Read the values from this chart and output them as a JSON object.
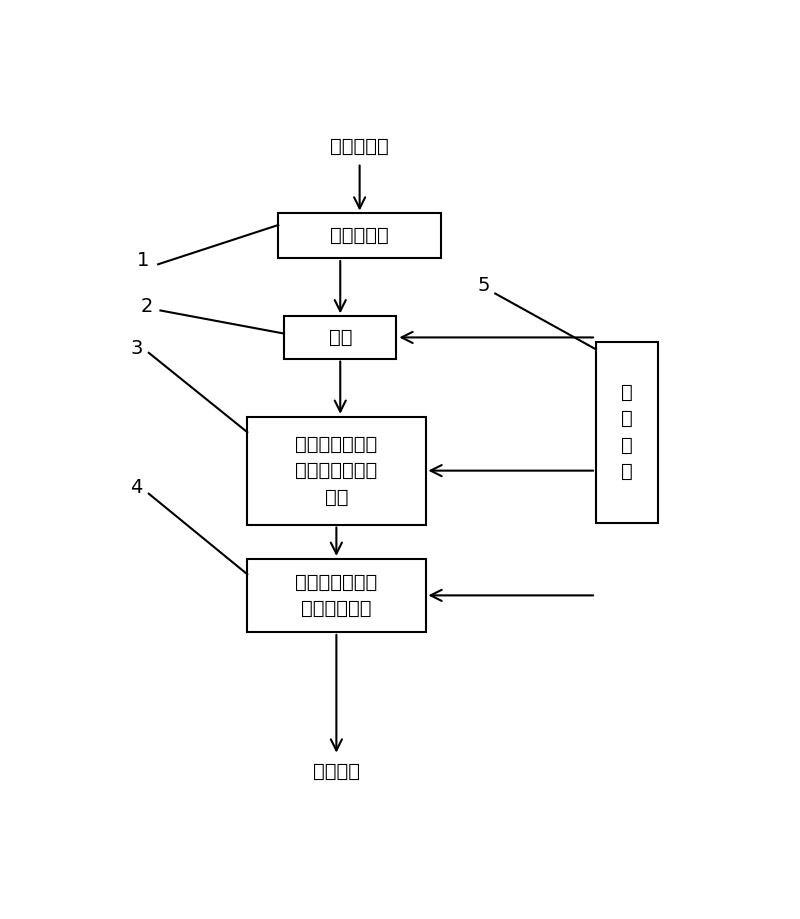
{
  "title_top": "待处理空气",
  "title_bottom": "净化空气",
  "box1_label": "颗粒过滤网",
  "box2_label": "风机",
  "box3_label": "兼具吸附和催化\n氧化作用的多孔\n材料",
  "box4_label": "起保护性吸附作\n用的多孔材料",
  "box5_label": "控\n制\n单\n元",
  "num_labels": [
    "1",
    "2",
    "3",
    "4",
    "5"
  ],
  "bg_color": "#ffffff",
  "box_edge_color": "#000000",
  "arrow_color": "#000000",
  "text_color": "#000000",
  "font_size": 14,
  "label_font_size": 14,
  "lw": 1.5
}
